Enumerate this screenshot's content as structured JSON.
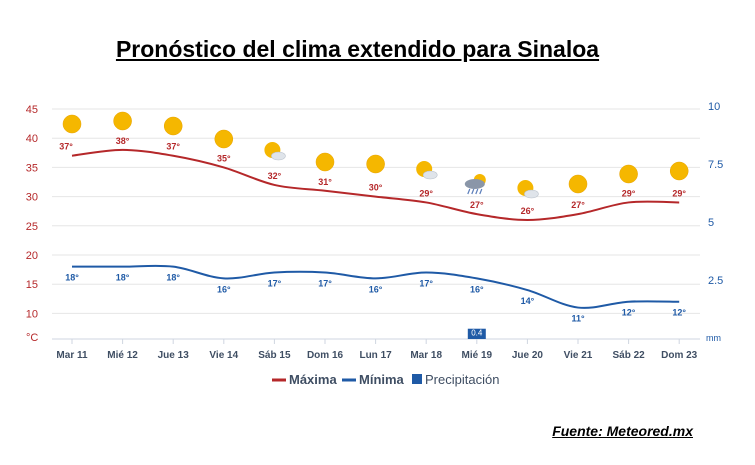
{
  "title": "Pronóstico del clima extendido para Sinaloa",
  "source": "Fuente: Meteored.mx",
  "colors": {
    "max": "#b5282a",
    "min": "#1f5aa6",
    "precip": "#1f5aa6",
    "axis_left": "#b5282a",
    "axis_right": "#1f5aa6",
    "sun": "#f5b700"
  },
  "chart_data": {
    "type": "line",
    "categories": [
      "Mar 11",
      "Mié 12",
      "Jue 13",
      "Vie 14",
      "Sáb 15",
      "Dom 16",
      "Lun 17",
      "Mar 18",
      "Mié 19",
      "Jue 20",
      "Vie 21",
      "Sáb 22",
      "Dom 23"
    ],
    "series": [
      {
        "name": "Máxima",
        "axis": "left",
        "values": [
          37,
          38,
          37,
          35,
          32,
          31,
          30,
          29,
          27,
          26,
          27,
          29,
          29
        ],
        "labels": [
          "37°",
          "38°",
          "37°",
          "35°",
          "32°",
          "31°",
          "30°",
          "29°",
          "27°",
          "26°",
          "27°",
          "29°",
          "29°"
        ]
      },
      {
        "name": "Mínima",
        "axis": "left",
        "values": [
          18,
          18,
          18,
          16,
          17,
          17,
          16,
          17,
          16,
          14,
          11,
          12,
          12
        ],
        "labels": [
          "18°",
          "18°",
          "18°",
          "16°",
          "17°",
          "17°",
          "16°",
          "17°",
          "16°",
          "14°",
          "11°",
          "12°",
          "12°"
        ]
      },
      {
        "name": "Precipitación",
        "axis": "right",
        "type": "bar",
        "values": [
          0,
          0,
          0,
          0,
          0,
          0,
          0,
          0,
          0.4,
          0,
          0,
          0,
          0
        ],
        "labels": [
          "",
          "",
          "",
          "",
          "",
          "",
          "",
          "",
          "0.4",
          "",
          "",
          "",
          ""
        ]
      }
    ],
    "weather_icons": [
      "sun-icon",
      "sun-icon",
      "sun-icon",
      "sun-icon",
      "sun-cloud-icon",
      "sun-icon",
      "sun-icon",
      "sun-cloud-icon",
      "rain-cloud-icon",
      "sun-cloud-icon",
      "sun-icon",
      "sun-icon",
      "sun-icon"
    ],
    "y_left": {
      "ticks": [
        10,
        15,
        20,
        25,
        30,
        35,
        40,
        45
      ],
      "unit_label": "°C",
      "range": [
        5,
        45
      ]
    },
    "y_right": {
      "ticks": [
        2.5,
        5,
        7.5,
        10
      ],
      "unit_label": "mm",
      "range": [
        0,
        10
      ]
    },
    "legend": [
      "Máxima",
      "Mínima",
      "Precipitación"
    ],
    "legend_position": "bottom",
    "grid": true
  }
}
